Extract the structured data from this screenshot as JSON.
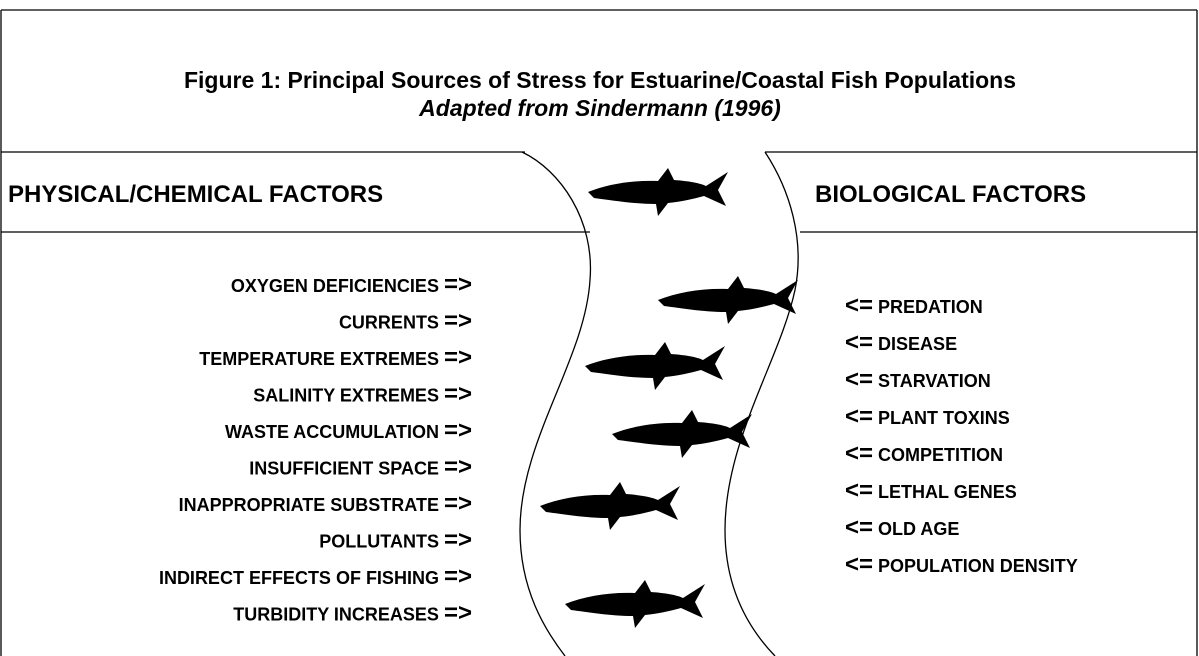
{
  "title": "Figure 1: Principal Sources of Stress for Estuarine/Coastal Fish Populations",
  "subtitle": "Adapted from Sindermann (1996)",
  "left": {
    "heading": "PHYSICAL/CHEMICAL FACTORS",
    "items": [
      {
        "label": "OXYGEN DEFICIENCIES",
        "arrow": "=>"
      },
      {
        "label": "CURRENTS",
        "arrow": "=>"
      },
      {
        "label": "TEMPERATURE EXTREMES",
        "arrow": "=>"
      },
      {
        "label": "SALINITY EXTREMES",
        "arrow": "=>"
      },
      {
        "label": "WASTE ACCUMULATION",
        "arrow": "=>"
      },
      {
        "label": "INSUFFICIENT SPACE",
        "arrow": "=>"
      },
      {
        "label": "INAPPROPRIATE SUBSTRATE",
        "arrow": "=>"
      },
      {
        "label": "POLLUTANTS",
        "arrow": "=>"
      },
      {
        "label": "INDIRECT EFFECTS OF FISHING",
        "arrow": "=>"
      },
      {
        "label": "TURBIDITY INCREASES",
        "arrow": "=>"
      }
    ]
  },
  "right": {
    "heading": "BIOLOGICAL FACTORS",
    "items": [
      {
        "arrow": "<=",
        "label": "PREDATION"
      },
      {
        "arrow": "<=",
        "label": "DISEASE"
      },
      {
        "arrow": "<=",
        "label": "STARVATION"
      },
      {
        "arrow": "<=",
        "label": "PLANT TOXINS"
      },
      {
        "arrow": "<=",
        "label": "COMPETITION"
      },
      {
        "arrow": "<=",
        "label": "LETHAL GENES"
      },
      {
        "arrow": "<=",
        "label": "OLD AGE"
      },
      {
        "arrow": "<=",
        "label": "POPULATION DENSITY"
      }
    ]
  }
}
